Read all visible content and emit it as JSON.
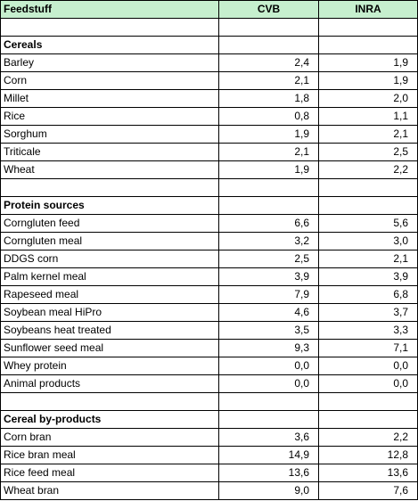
{
  "header": {
    "feedstuff": "Feedstuff",
    "cvb": "CVB",
    "inra": "INRA"
  },
  "header_color": "#c6efce",
  "rows": [
    {
      "kind": "blank"
    },
    {
      "kind": "section",
      "name": "Cereals"
    },
    {
      "kind": "item",
      "name": "Barley",
      "cvb": "2,4",
      "inra": "1,9"
    },
    {
      "kind": "item",
      "name": "Corn",
      "cvb": "2,1",
      "inra": "1,9"
    },
    {
      "kind": "item",
      "name": "Millet",
      "cvb": "1,8",
      "inra": "2,0"
    },
    {
      "kind": "item",
      "name": "Rice",
      "cvb": "0,8",
      "inra": "1,1"
    },
    {
      "kind": "item",
      "name": "Sorghum",
      "cvb": "1,9",
      "inra": "2,1"
    },
    {
      "kind": "item",
      "name": "Triticale",
      "cvb": "2,1",
      "inra": "2,5"
    },
    {
      "kind": "item",
      "name": "Wheat",
      "cvb": "1,9",
      "inra": "2,2"
    },
    {
      "kind": "blank"
    },
    {
      "kind": "section",
      "name": "Protein sources"
    },
    {
      "kind": "item",
      "name": "Corngluten feed",
      "cvb": "6,6",
      "inra": "5,6"
    },
    {
      "kind": "item",
      "name": "Corngluten meal",
      "cvb": "3,2",
      "inra": "3,0"
    },
    {
      "kind": "item",
      "name": "DDGS corn",
      "cvb": "2,5",
      "inra": "2,1"
    },
    {
      "kind": "item",
      "name": "Palm kernel meal",
      "cvb": "3,9",
      "inra": "3,9"
    },
    {
      "kind": "item",
      "name": "Rapeseed meal",
      "cvb": "7,9",
      "inra": "6,8"
    },
    {
      "kind": "item",
      "name": "Soybean meal HiPro",
      "cvb": "4,6",
      "inra": "3,7"
    },
    {
      "kind": "item",
      "name": "Soybeans heat treated",
      "cvb": "3,5",
      "inra": "3,3"
    },
    {
      "kind": "item",
      "name": "Sunflower seed meal",
      "cvb": "9,3",
      "inra": "7,1"
    },
    {
      "kind": "item",
      "name": "Whey protein",
      "cvb": "0,0",
      "inra": "0,0"
    },
    {
      "kind": "item",
      "name": "Animal products",
      "cvb": "0,0",
      "inra": "0,0"
    },
    {
      "kind": "blank"
    },
    {
      "kind": "section",
      "name": "Cereal by-products"
    },
    {
      "kind": "item",
      "name": "Corn bran",
      "cvb": "3,6",
      "inra": "2,2"
    },
    {
      "kind": "item",
      "name": "Rice bran meal",
      "cvb": "14,9",
      "inra": "12,8"
    },
    {
      "kind": "item",
      "name": "Rice feed meal",
      "cvb": "13,6",
      "inra": "13,6"
    },
    {
      "kind": "item",
      "name": "Wheat bran",
      "cvb": "9,0",
      "inra": "7,6"
    }
  ]
}
